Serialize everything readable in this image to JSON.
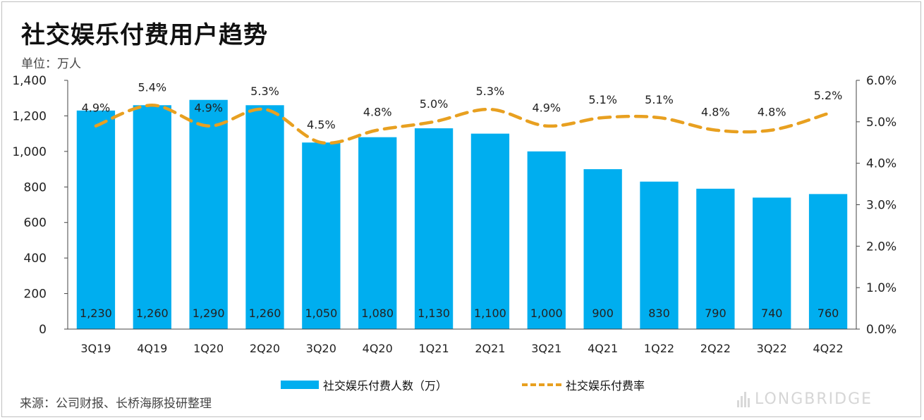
{
  "title": "社交娱乐付费用户趋势",
  "unit_label": "单位：万人",
  "source": "来源：公司财报、长桥海豚投研整理",
  "watermark": {
    "brand": "LONGBRIDGE"
  },
  "colors": {
    "bar": "#00AEEF",
    "line": "#E8A020",
    "axis": "#444444"
  },
  "chart_data": {
    "type": "bar",
    "categories": [
      "3Q19",
      "4Q19",
      "1Q20",
      "2Q20",
      "3Q20",
      "4Q20",
      "1Q21",
      "2Q21",
      "3Q21",
      "4Q21",
      "1Q22",
      "2Q22",
      "3Q22",
      "4Q22"
    ],
    "series": [
      {
        "name": "社交娱乐付费人数（万）",
        "type": "bar",
        "axis": "left",
        "values": [
          1230,
          1260,
          1290,
          1260,
          1050,
          1080,
          1130,
          1100,
          1000,
          900,
          830,
          790,
          740,
          760
        ],
        "labels": [
          "1,230",
          "1,260",
          "1,290",
          "1,260",
          "1,050",
          "1,080",
          "1,130",
          "1,100",
          "1,000",
          "900",
          "830",
          "790",
          "740",
          "760"
        ]
      },
      {
        "name": "社交娱乐付费率",
        "type": "line",
        "style": "dashed-smooth",
        "axis": "right",
        "values": [
          4.9,
          5.4,
          4.9,
          5.3,
          4.5,
          4.8,
          5.0,
          5.3,
          4.9,
          5.1,
          5.1,
          4.8,
          4.8,
          5.2
        ],
        "labels": [
          "4.9%",
          "5.4%",
          "4.9%",
          "5.3%",
          "4.5%",
          "4.8%",
          "5.0%",
          "5.3%",
          "4.9%",
          "5.1%",
          "5.1%",
          "4.8%",
          "4.8%",
          "5.2%"
        ]
      }
    ],
    "y_left": {
      "ylim": [
        0,
        1400
      ],
      "ticks": [
        0,
        200,
        400,
        600,
        800,
        1000,
        1200,
        1400
      ],
      "tick_labels": [
        "0",
        "200",
        "400",
        "600",
        "800",
        "1,000",
        "1,200",
        "1,400"
      ]
    },
    "y_right": {
      "ylim": [
        0,
        6
      ],
      "ticks": [
        0,
        1,
        2,
        3,
        4,
        5,
        6
      ],
      "tick_labels": [
        "0.0%",
        "1.0%",
        "2.0%",
        "3.0%",
        "4.0%",
        "5.0%",
        "6.0%"
      ]
    },
    "grid": false,
    "legend_position": "bottom"
  }
}
